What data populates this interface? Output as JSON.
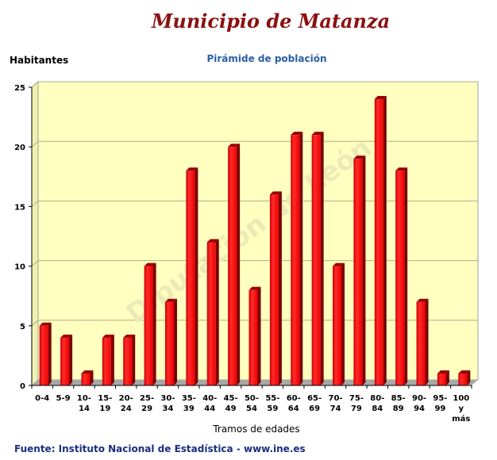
{
  "header": {
    "title": "Municipio de Matanza",
    "subtitle": "Pirámide de población",
    "source": "Fuente: Instituto Nacional de Estadística - www.ine.es"
  },
  "watermark": "Diputación de León",
  "chart_data": {
    "type": "bar",
    "title": "Pirámide de población",
    "xlabel": "Tramos de edades",
    "ylabel": "Habitantes",
    "ylim": [
      0,
      25
    ],
    "yticks": [
      0,
      5,
      10,
      15,
      20,
      25
    ],
    "grid": true,
    "bar_color": "#ff0000",
    "plot_background": "#ffffc0",
    "categories": [
      "0-4",
      "5-9",
      "10-14",
      "15-19",
      "20-24",
      "25-29",
      "30-34",
      "35-39",
      "40-44",
      "45-49",
      "50-54",
      "55-59",
      "60-64",
      "65-69",
      "70-74",
      "75-79",
      "80-84",
      "85-89",
      "90-94",
      "95-99",
      "100 y más"
    ],
    "category_lines": [
      [
        "0-4"
      ],
      [
        "5-9"
      ],
      [
        "10-",
        "14"
      ],
      [
        "15-",
        "19"
      ],
      [
        "20-",
        "24"
      ],
      [
        "25-",
        "29"
      ],
      [
        "30-",
        "34"
      ],
      [
        "35-",
        "39"
      ],
      [
        "40-",
        "44"
      ],
      [
        "45-",
        "49"
      ],
      [
        "50-",
        "54"
      ],
      [
        "55-",
        "59"
      ],
      [
        "60-",
        "64"
      ],
      [
        "65-",
        "69"
      ],
      [
        "70-",
        "74"
      ],
      [
        "75-",
        "79"
      ],
      [
        "80-",
        "84"
      ],
      [
        "85-",
        "89"
      ],
      [
        "90-",
        "94"
      ],
      [
        "95-",
        "99"
      ],
      [
        "100",
        "y",
        "más"
      ]
    ],
    "values": [
      5,
      4,
      1,
      4,
      4,
      10,
      7,
      18,
      12,
      20,
      8,
      16,
      21,
      21,
      10,
      19,
      24,
      18,
      7,
      1,
      1
    ]
  }
}
